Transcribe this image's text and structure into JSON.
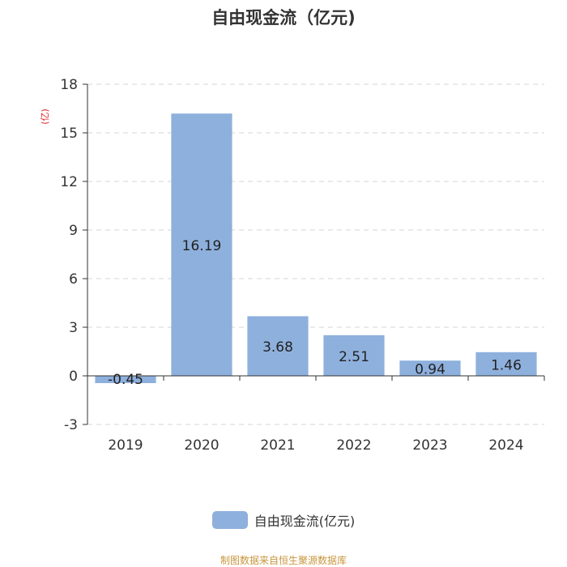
{
  "chart_data": {
    "type": "bar",
    "title": "自由现金流（亿元)",
    "ylabel": "(亿)",
    "categories": [
      "2019",
      "2020",
      "2021",
      "2022",
      "2023",
      "2024"
    ],
    "series": [
      {
        "name": "自由现金流(亿元)",
        "values": [
          -0.45,
          16.19,
          3.68,
          2.51,
          0.94,
          1.46
        ]
      }
    ],
    "data_labels": [
      "-0.45",
      "16.19",
      "3.68",
      "2.51",
      "0.94",
      "1.46"
    ],
    "ylim": [
      -3,
      18
    ],
    "yticks": [
      -3,
      0,
      3,
      6,
      9,
      12,
      15,
      18
    ],
    "grid": true,
    "legend_position": "bottom-center"
  },
  "colors": {
    "bar": "#8eb0dd",
    "ylabel": "#e02020",
    "source": "#c8963e"
  },
  "footer": {
    "source": "制图数据来自恒生聚源数据库"
  }
}
